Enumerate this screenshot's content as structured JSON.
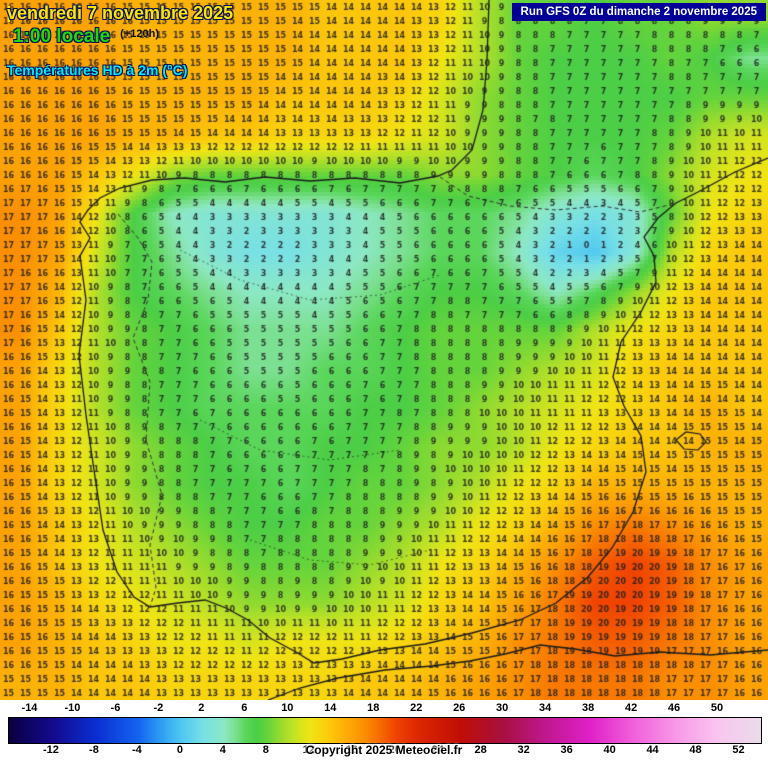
{
  "header": {
    "date_line": "vendredi 7 novembre 2025",
    "time_line": "1:00 locale",
    "timestep": "(+120h)",
    "product": "Températures HD à 2m (°C)",
    "run_info": "Run GFS 0Z du dimanche 2 novembre 2025"
  },
  "footer": {
    "copyright": "Copyright 2025 Meteociel.fr"
  },
  "colors": {
    "date": "#ffe400",
    "time": "#22d800",
    "timestep": "#101010",
    "product": "#00e8f0",
    "run_bg": "#000096",
    "run_fg": "#ffffff"
  },
  "legend": {
    "min": -16,
    "max": 54,
    "top_ticks": [
      -14,
      -10,
      -6,
      -2,
      2,
      6,
      10,
      14,
      18,
      22,
      26,
      30,
      34,
      38,
      42,
      46,
      50
    ],
    "bottom_ticks": [
      -12,
      -8,
      -4,
      0,
      4,
      8,
      12,
      16,
      20,
      24,
      28,
      32,
      36,
      40,
      44,
      48,
      52
    ]
  },
  "chart_data": {
    "type": "heatmap",
    "title": "Températures HD à 2m (°C)",
    "units": "°C",
    "cell": {
      "w": 17,
      "h": 14
    },
    "label_color": "rgba(30,30,30,0.85)",
    "grid": {
      "cols": 20,
      "rows": 18,
      "values": [
        [
          16,
          16,
          16,
          15,
          15,
          15,
          15,
          15,
          14,
          14,
          14,
          13,
          10,
          8,
          8,
          7,
          8,
          8,
          9,
          9
        ],
        [
          16,
          16,
          16,
          15,
          15,
          15,
          15,
          15,
          14,
          14,
          14,
          12,
          10,
          8,
          7,
          7,
          7,
          8,
          7,
          5
        ],
        [
          16,
          16,
          16,
          15,
          15,
          15,
          15,
          14,
          14,
          14,
          13,
          11,
          9,
          8,
          7,
          7,
          7,
          7,
          8,
          8
        ],
        [
          16,
          16,
          16,
          15,
          15,
          14,
          14,
          13,
          13,
          13,
          12,
          11,
          9,
          8,
          7,
          7,
          7,
          8,
          10,
          11
        ],
        [
          16,
          16,
          14,
          12,
          9,
          8,
          8,
          8,
          8,
          8,
          8,
          9,
          9,
          8,
          7,
          6,
          7,
          9,
          11,
          12
        ],
        [
          17,
          16,
          12,
          7,
          4,
          3,
          3,
          3,
          3,
          4,
          5,
          6,
          6,
          5,
          3,
          2,
          3,
          8,
          12,
          13
        ],
        [
          17,
          16,
          11,
          7,
          5,
          3,
          2,
          2,
          3,
          4,
          5,
          6,
          6,
          4,
          1,
          0,
          3,
          10,
          13,
          14
        ],
        [
          17,
          15,
          10,
          7,
          6,
          5,
          4,
          4,
          4,
          5,
          6,
          7,
          7,
          6,
          4,
          6,
          9,
          12,
          14,
          14
        ],
        [
          17,
          14,
          10,
          8,
          7,
          6,
          5,
          5,
          5,
          6,
          7,
          8,
          8,
          8,
          8,
          10,
          12,
          13,
          14,
          14
        ],
        [
          16,
          13,
          10,
          8,
          7,
          6,
          5,
          5,
          6,
          6,
          7,
          8,
          8,
          9,
          10,
          11,
          13,
          14,
          14,
          14
        ],
        [
          16,
          13,
          10,
          8,
          7,
          6,
          6,
          6,
          6,
          7,
          7,
          8,
          9,
          10,
          11,
          12,
          13,
          14,
          15,
          14
        ],
        [
          16,
          13,
          11,
          9,
          8,
          7,
          6,
          6,
          7,
          7,
          8,
          9,
          9,
          10,
          12,
          13,
          14,
          14,
          15,
          15
        ],
        [
          16,
          13,
          11,
          9,
          8,
          7,
          7,
          6,
          7,
          8,
          8,
          9,
          10,
          12,
          13,
          15,
          15,
          15,
          15,
          15
        ],
        [
          16,
          14,
          12,
          10,
          9,
          8,
          7,
          7,
          8,
          8,
          9,
          10,
          12,
          13,
          15,
          17,
          18,
          17,
          16,
          15
        ],
        [
          16,
          14,
          12,
          11,
          10,
          9,
          8,
          8,
          8,
          9,
          10,
          12,
          13,
          15,
          17,
          19,
          20,
          19,
          17,
          16
        ],
        [
          16,
          15,
          13,
          12,
          11,
          10,
          9,
          9,
          9,
          10,
          11,
          13,
          14,
          16,
          18,
          20,
          20,
          19,
          17,
          16
        ],
        [
          16,
          15,
          14,
          13,
          12,
          12,
          11,
          12,
          12,
          12,
          13,
          14,
          15,
          17,
          18,
          19,
          19,
          18,
          17,
          16
        ],
        [
          15,
          15,
          14,
          14,
          13,
          13,
          13,
          13,
          13,
          14,
          14,
          15,
          16,
          17,
          18,
          18,
          18,
          17,
          17,
          16
        ]
      ]
    },
    "color_stops": [
      {
        "v": -16,
        "c": "#0a0040"
      },
      {
        "v": -12,
        "c": "#140a8c"
      },
      {
        "v": -8,
        "c": "#0a2ed2"
      },
      {
        "v": -4,
        "c": "#1464f0"
      },
      {
        "v": -2,
        "c": "#2d9cf0"
      },
      {
        "v": 0,
        "c": "#50c8f0"
      },
      {
        "v": 2,
        "c": "#78e0e6"
      },
      {
        "v": 4,
        "c": "#8ce8c4"
      },
      {
        "v": 5,
        "c": "#7ce092"
      },
      {
        "v": 6,
        "c": "#5ad65a"
      },
      {
        "v": 7,
        "c": "#4cce46"
      },
      {
        "v": 8,
        "c": "#64d43c"
      },
      {
        "v": 9,
        "c": "#8eda30"
      },
      {
        "v": 10,
        "c": "#b4e028"
      },
      {
        "v": 11,
        "c": "#d4e41e"
      },
      {
        "v": 12,
        "c": "#f0e414"
      },
      {
        "v": 13,
        "c": "#f8d60e"
      },
      {
        "v": 14,
        "c": "#fcc60a"
      },
      {
        "v": 15,
        "c": "#fdb206"
      },
      {
        "v": 16,
        "c": "#fda203"
      },
      {
        "v": 17,
        "c": "#fb8f00"
      },
      {
        "v": 18,
        "c": "#f87800"
      },
      {
        "v": 19,
        "c": "#f55e00"
      },
      {
        "v": 20,
        "c": "#f04300"
      },
      {
        "v": 22,
        "c": "#de2800"
      },
      {
        "v": 26,
        "c": "#c00e06"
      },
      {
        "v": 30,
        "c": "#a81040"
      },
      {
        "v": 34,
        "c": "#c01890"
      },
      {
        "v": 38,
        "c": "#e020c8"
      },
      {
        "v": 42,
        "c": "#f060da"
      },
      {
        "v": 46,
        "c": "#f898e8"
      },
      {
        "v": 50,
        "c": "#fac6f0"
      },
      {
        "v": 54,
        "c": "#eadcea"
      }
    ],
    "coastlines": [
      {
        "name": "iberia-coast",
        "color": "#1a1a1a",
        "width": 1.3,
        "dash": [],
        "pts": [
          [
            489,
            0
          ],
          [
            487,
            60
          ],
          [
            483,
            110
          ],
          [
            472,
            150
          ],
          [
            452,
            170
          ],
          [
            438,
            176
          ],
          [
            400,
            183
          ],
          [
            355,
            178
          ],
          [
            310,
            181
          ],
          [
            265,
            177
          ],
          [
            225,
            182
          ],
          [
            185,
            178
          ],
          [
            152,
            180
          ],
          [
            120,
            188
          ],
          [
            100,
            198
          ],
          [
            88,
            210
          ],
          [
            80,
            222
          ],
          [
            90,
            238
          ],
          [
            80,
            256
          ],
          [
            86,
            300
          ],
          [
            79,
            355
          ],
          [
            86,
            415
          ],
          [
            94,
            470
          ],
          [
            103,
            530
          ],
          [
            117,
            572
          ],
          [
            134,
            597
          ],
          [
            150,
            607
          ],
          [
            178,
            603
          ],
          [
            205,
            600
          ],
          [
            226,
            608
          ],
          [
            248,
            620
          ],
          [
            270,
            638
          ],
          [
            296,
            652
          ],
          [
            314,
            663
          ],
          [
            342,
            659
          ],
          [
            380,
            650
          ],
          [
            425,
            644
          ],
          [
            472,
            633
          ],
          [
            520,
            620
          ],
          [
            556,
            603
          ],
          [
            588,
            577
          ],
          [
            612,
            548
          ],
          [
            633,
            512
          ],
          [
            646,
            472
          ],
          [
            641,
            436
          ],
          [
            624,
            406
          ],
          [
            613,
            377
          ],
          [
            621,
            342
          ],
          [
            641,
            312
          ],
          [
            656,
            282
          ],
          [
            654,
            256
          ],
          [
            644,
            237
          ],
          [
            658,
            218
          ],
          [
            676,
            203
          ],
          [
            698,
            192
          ],
          [
            735,
            172
          ],
          [
            768,
            158
          ]
        ]
      },
      {
        "name": "france-spain-border",
        "color": "#333333",
        "width": 1,
        "dash": [
          4,
          3
        ],
        "pts": [
          [
            440,
            177
          ],
          [
            468,
            196
          ],
          [
            510,
            206
          ],
          [
            556,
            210
          ],
          [
            602,
            206
          ],
          [
            640,
            212
          ],
          [
            665,
            206
          ],
          [
            676,
            202
          ]
        ]
      },
      {
        "name": "portugal-spain-border",
        "color": "#333333",
        "width": 1,
        "dash": [
          4,
          3
        ],
        "pts": [
          [
            118,
            214
          ],
          [
            138,
            238
          ],
          [
            152,
            262
          ],
          [
            148,
            300
          ],
          [
            133,
            338
          ],
          [
            150,
            382
          ],
          [
            146,
            440
          ],
          [
            162,
            495
          ],
          [
            150,
            545
          ],
          [
            156,
            588
          ],
          [
            150,
            607
          ]
        ]
      },
      {
        "name": "africa-coast",
        "color": "#1a1a1a",
        "width": 1.3,
        "dash": [],
        "pts": [
          [
            268,
            700
          ],
          [
            300,
            688
          ],
          [
            338,
            678
          ],
          [
            385,
            670
          ],
          [
            432,
            666
          ],
          [
            470,
            661
          ],
          [
            505,
            654
          ],
          [
            540,
            645
          ],
          [
            575,
            649
          ],
          [
            615,
            656
          ],
          [
            660,
            652
          ],
          [
            710,
            655
          ],
          [
            768,
            650
          ]
        ]
      },
      {
        "name": "mallorca-island",
        "color": "#1a1a1a",
        "width": 1.2,
        "dash": [],
        "pts": [
          [
            676,
            440
          ],
          [
            686,
            432
          ],
          [
            700,
            434
          ],
          [
            706,
            442
          ],
          [
            698,
            450
          ],
          [
            684,
            449
          ],
          [
            676,
            440
          ]
        ]
      },
      {
        "name": "relief-contour-north",
        "color": "rgba(0,0,0,0.5)",
        "width": 1,
        "dash": [
          2,
          3
        ],
        "pts": [
          [
            180,
            250
          ],
          [
            240,
            280
          ],
          [
            310,
            300
          ],
          [
            380,
            295
          ],
          [
            440,
            275
          ]
        ]
      },
      {
        "name": "relief-contour-center",
        "color": "rgba(0,0,0,0.5)",
        "width": 1,
        "dash": [
          2,
          3
        ],
        "pts": [
          [
            200,
            420
          ],
          [
            260,
            450
          ],
          [
            330,
            460
          ],
          [
            400,
            450
          ]
        ]
      },
      {
        "name": "relief-contour-south",
        "color": "rgba(0,0,0,0.5)",
        "width": 1,
        "dash": [
          2,
          3
        ],
        "pts": [
          [
            250,
            540
          ],
          [
            310,
            560
          ],
          [
            370,
            565
          ],
          [
            430,
            550
          ]
        ]
      }
    ]
  }
}
